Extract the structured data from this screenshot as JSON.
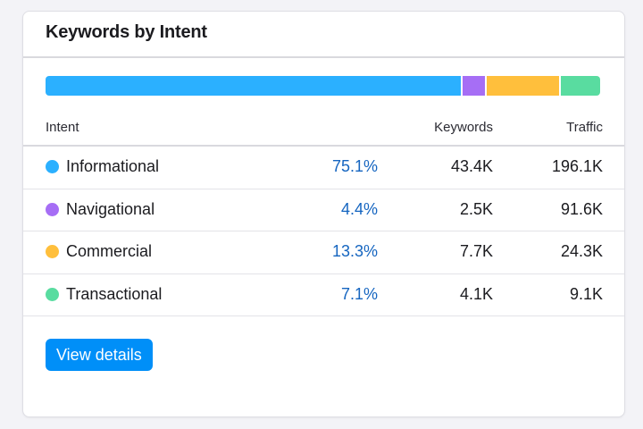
{
  "widget": {
    "title": "Keywords by Intent",
    "button_label": "View details"
  },
  "table": {
    "headers": {
      "intent": "Intent",
      "keywords": "Keywords",
      "traffic": "Traffic"
    },
    "rows": [
      {
        "name": "Informational",
        "percent": "75.1%",
        "keywords": "43.4K",
        "traffic": "196.1K",
        "color": "#2bb0ff",
        "share": 75.1
      },
      {
        "name": "Navigational",
        "percent": "4.4%",
        "keywords": "2.5K",
        "traffic": "91.6K",
        "color": "#a66ef5",
        "share": 4.4
      },
      {
        "name": "Commercial",
        "percent": "13.3%",
        "keywords": "7.7K",
        "traffic": "24.3K",
        "color": "#ffbf3c",
        "share": 13.3
      },
      {
        "name": "Transactional",
        "percent": "7.1%",
        "keywords": "4.1K",
        "traffic": "9.1K",
        "color": "#59dca0",
        "share": 7.1
      }
    ]
  }
}
